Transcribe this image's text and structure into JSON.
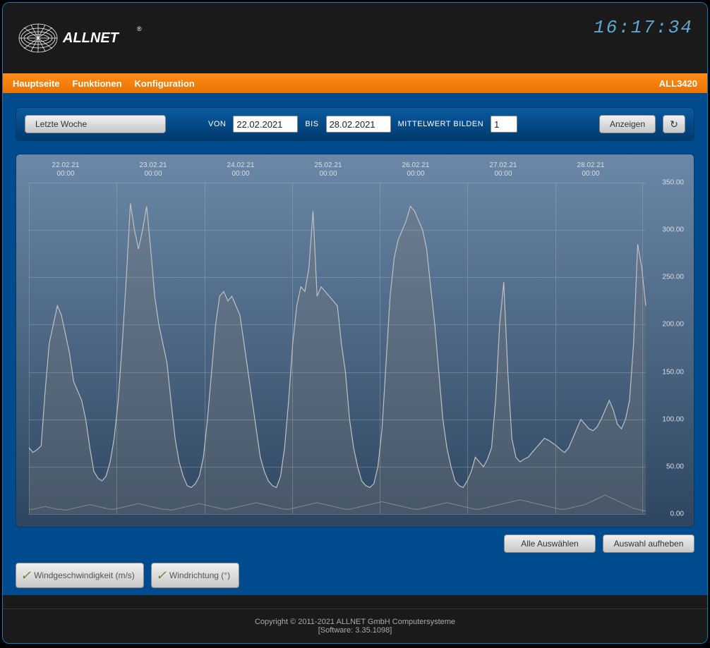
{
  "clock": "16:17:34",
  "brand": "ALLNET",
  "nav": {
    "items": [
      "Hauptseite",
      "Funktionen",
      "Konfiguration"
    ],
    "model": "ALL3420"
  },
  "controls": {
    "period_button": "Letzte Woche",
    "from_label": "VON",
    "from_value": "22.02.2021",
    "to_label": "BIS",
    "to_value": "28.02.2021",
    "average_label": "MITTELWERT BILDEN",
    "average_value": "1",
    "show_button": "Anzeigen"
  },
  "chart": {
    "type": "line",
    "background_top": "#6b88a8",
    "background_bottom": "#2d4560",
    "grid_color": "rgba(180,180,180,0.35)",
    "series1_color": "#c0c0c0",
    "series1_fill": "rgba(120,120,120,0.35)",
    "series2_color": "#888888",
    "ylim": [
      0,
      350
    ],
    "yticks": [
      0,
      50,
      100,
      150,
      200,
      250,
      300,
      350
    ],
    "x_labels": [
      "22.02.21\n00:00",
      "23.02.21\n00:00",
      "24.02.21\n00:00",
      "25.02.21\n00:00",
      "26.02.21\n00:00",
      "27.02.21\n00:00",
      "28.02.21\n00:00"
    ],
    "series1_values": [
      70,
      65,
      68,
      72,
      130,
      180,
      200,
      220,
      210,
      190,
      170,
      140,
      130,
      120,
      100,
      70,
      45,
      38,
      35,
      40,
      55,
      80,
      120,
      180,
      250,
      328,
      300,
      280,
      300,
      325,
      280,
      230,
      200,
      180,
      160,
      120,
      80,
      55,
      40,
      30,
      28,
      32,
      40,
      60,
      100,
      150,
      200,
      230,
      235,
      225,
      230,
      220,
      210,
      180,
      150,
      120,
      90,
      60,
      45,
      35,
      30,
      28,
      40,
      70,
      120,
      180,
      220,
      240,
      235,
      260,
      320,
      230,
      240,
      235,
      230,
      225,
      220,
      180,
      150,
      100,
      70,
      50,
      35,
      30,
      28,
      32,
      50,
      90,
      160,
      230,
      270,
      290,
      300,
      310,
      325,
      320,
      310,
      300,
      280,
      240,
      200,
      150,
      100,
      70,
      50,
      35,
      30,
      28,
      35,
      45,
      60,
      55,
      50,
      58,
      70,
      120,
      200,
      245,
      150,
      80,
      60,
      55,
      58,
      60,
      65,
      70,
      75,
      80,
      78,
      75,
      72,
      68,
      65,
      70,
      80,
      90,
      100,
      95,
      90,
      88,
      92,
      100,
      110,
      120,
      110,
      95,
      90,
      100,
      120,
      180,
      285,
      260,
      220
    ],
    "series2_values": [
      5,
      5,
      6,
      7,
      8,
      7,
      6,
      5,
      5,
      4,
      5,
      6,
      7,
      8,
      9,
      10,
      9,
      8,
      7,
      6,
      5,
      5,
      6,
      7,
      8,
      9,
      10,
      11,
      10,
      9,
      8,
      7,
      6,
      5,
      5,
      4,
      5,
      6,
      7,
      8,
      9,
      10,
      11,
      10,
      9,
      8,
      7,
      6,
      5,
      5,
      6,
      7,
      8,
      9,
      10,
      11,
      12,
      11,
      10,
      9,
      8,
      7,
      6,
      5,
      5,
      6,
      7,
      8,
      9,
      10,
      11,
      12,
      11,
      10,
      9,
      8,
      7,
      6,
      5,
      5,
      6,
      7,
      8,
      9,
      10,
      11,
      12,
      13,
      12,
      11,
      10,
      9,
      8,
      7,
      6,
      5,
      5,
      6,
      7,
      8,
      9,
      10,
      11,
      12,
      11,
      10,
      9,
      8,
      7,
      6,
      5,
      5,
      6,
      7,
      8,
      9,
      10,
      11,
      12,
      13,
      14,
      15,
      14,
      13,
      12,
      11,
      10,
      9,
      8,
      7,
      6,
      5,
      5,
      6,
      7,
      8,
      9,
      10,
      12,
      14,
      16,
      18,
      20,
      18,
      16,
      14,
      12,
      10,
      8,
      6,
      5,
      4,
      3
    ]
  },
  "selection": {
    "select_all": "Alle Auswählen",
    "deselect_all": "Auswahl aufheben"
  },
  "legend": {
    "items": [
      "Windgeschwindigkeit (m/s)",
      "Windrichtung (°)"
    ]
  },
  "footer": {
    "copyright": "Copyright © 2011-2021 ALLNET GmbH Computersysteme",
    "software": "[Software: 3.35.1098]"
  }
}
